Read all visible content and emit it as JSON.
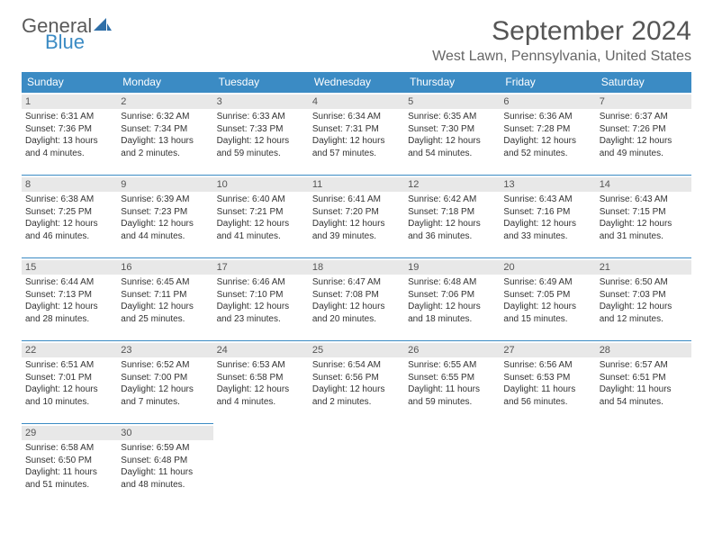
{
  "logo": {
    "text1": "General",
    "text2": "Blue"
  },
  "title": "September 2024",
  "location": "West Lawn, Pennsylvania, United States",
  "colors": {
    "header_bg": "#3b8bc4",
    "header_text": "#ffffff",
    "daynum_bg": "#e8e8e8",
    "border": "#3b8bc4",
    "logo_gray": "#5a5a5a",
    "logo_blue": "#3b8bc4"
  },
  "daysOfWeek": [
    "Sunday",
    "Monday",
    "Tuesday",
    "Wednesday",
    "Thursday",
    "Friday",
    "Saturday"
  ],
  "weeks": [
    [
      {
        "n": "1",
        "sunrise": "6:31 AM",
        "sunset": "7:36 PM",
        "daylight": "13 hours and 4 minutes."
      },
      {
        "n": "2",
        "sunrise": "6:32 AM",
        "sunset": "7:34 PM",
        "daylight": "13 hours and 2 minutes."
      },
      {
        "n": "3",
        "sunrise": "6:33 AM",
        "sunset": "7:33 PM",
        "daylight": "12 hours and 59 minutes."
      },
      {
        "n": "4",
        "sunrise": "6:34 AM",
        "sunset": "7:31 PM",
        "daylight": "12 hours and 57 minutes."
      },
      {
        "n": "5",
        "sunrise": "6:35 AM",
        "sunset": "7:30 PM",
        "daylight": "12 hours and 54 minutes."
      },
      {
        "n": "6",
        "sunrise": "6:36 AM",
        "sunset": "7:28 PM",
        "daylight": "12 hours and 52 minutes."
      },
      {
        "n": "7",
        "sunrise": "6:37 AM",
        "sunset": "7:26 PM",
        "daylight": "12 hours and 49 minutes."
      }
    ],
    [
      {
        "n": "8",
        "sunrise": "6:38 AM",
        "sunset": "7:25 PM",
        "daylight": "12 hours and 46 minutes."
      },
      {
        "n": "9",
        "sunrise": "6:39 AM",
        "sunset": "7:23 PM",
        "daylight": "12 hours and 44 minutes."
      },
      {
        "n": "10",
        "sunrise": "6:40 AM",
        "sunset": "7:21 PM",
        "daylight": "12 hours and 41 minutes."
      },
      {
        "n": "11",
        "sunrise": "6:41 AM",
        "sunset": "7:20 PM",
        "daylight": "12 hours and 39 minutes."
      },
      {
        "n": "12",
        "sunrise": "6:42 AM",
        "sunset": "7:18 PM",
        "daylight": "12 hours and 36 minutes."
      },
      {
        "n": "13",
        "sunrise": "6:43 AM",
        "sunset": "7:16 PM",
        "daylight": "12 hours and 33 minutes."
      },
      {
        "n": "14",
        "sunrise": "6:43 AM",
        "sunset": "7:15 PM",
        "daylight": "12 hours and 31 minutes."
      }
    ],
    [
      {
        "n": "15",
        "sunrise": "6:44 AM",
        "sunset": "7:13 PM",
        "daylight": "12 hours and 28 minutes."
      },
      {
        "n": "16",
        "sunrise": "6:45 AM",
        "sunset": "7:11 PM",
        "daylight": "12 hours and 25 minutes."
      },
      {
        "n": "17",
        "sunrise": "6:46 AM",
        "sunset": "7:10 PM",
        "daylight": "12 hours and 23 minutes."
      },
      {
        "n": "18",
        "sunrise": "6:47 AM",
        "sunset": "7:08 PM",
        "daylight": "12 hours and 20 minutes."
      },
      {
        "n": "19",
        "sunrise": "6:48 AM",
        "sunset": "7:06 PM",
        "daylight": "12 hours and 18 minutes."
      },
      {
        "n": "20",
        "sunrise": "6:49 AM",
        "sunset": "7:05 PM",
        "daylight": "12 hours and 15 minutes."
      },
      {
        "n": "21",
        "sunrise": "6:50 AM",
        "sunset": "7:03 PM",
        "daylight": "12 hours and 12 minutes."
      }
    ],
    [
      {
        "n": "22",
        "sunrise": "6:51 AM",
        "sunset": "7:01 PM",
        "daylight": "12 hours and 10 minutes."
      },
      {
        "n": "23",
        "sunrise": "6:52 AM",
        "sunset": "7:00 PM",
        "daylight": "12 hours and 7 minutes."
      },
      {
        "n": "24",
        "sunrise": "6:53 AM",
        "sunset": "6:58 PM",
        "daylight": "12 hours and 4 minutes."
      },
      {
        "n": "25",
        "sunrise": "6:54 AM",
        "sunset": "6:56 PM",
        "daylight": "12 hours and 2 minutes."
      },
      {
        "n": "26",
        "sunrise": "6:55 AM",
        "sunset": "6:55 PM",
        "daylight": "11 hours and 59 minutes."
      },
      {
        "n": "27",
        "sunrise": "6:56 AM",
        "sunset": "6:53 PM",
        "daylight": "11 hours and 56 minutes."
      },
      {
        "n": "28",
        "sunrise": "6:57 AM",
        "sunset": "6:51 PM",
        "daylight": "11 hours and 54 minutes."
      }
    ],
    [
      {
        "n": "29",
        "sunrise": "6:58 AM",
        "sunset": "6:50 PM",
        "daylight": "11 hours and 51 minutes."
      },
      {
        "n": "30",
        "sunrise": "6:59 AM",
        "sunset": "6:48 PM",
        "daylight": "11 hours and 48 minutes."
      },
      null,
      null,
      null,
      null,
      null
    ]
  ],
  "labels": {
    "sunrise": "Sunrise:",
    "sunset": "Sunset:",
    "daylight": "Daylight:"
  }
}
